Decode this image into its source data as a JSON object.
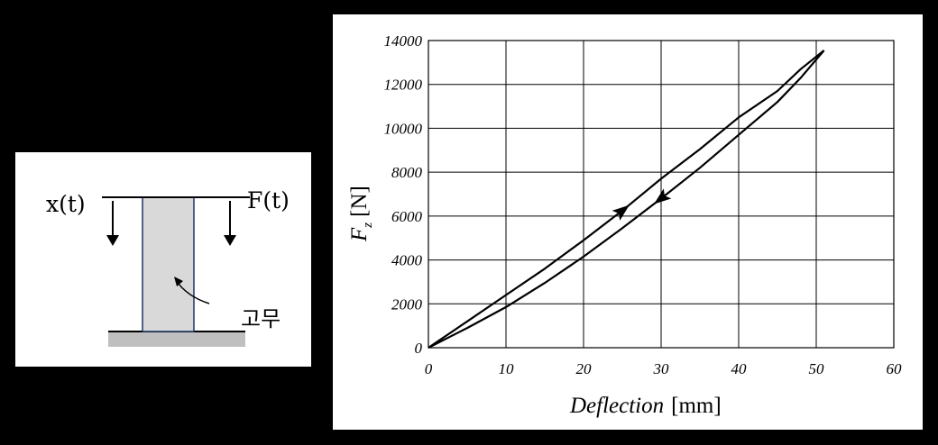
{
  "schematic": {
    "displacement_label": "x(t)",
    "force_label": "F(t)",
    "material_label": "고무",
    "colors": {
      "rubber_fill": "#d9d9d9",
      "rubber_edge": "#1f3864",
      "base_fill": "#bfbfbf"
    }
  },
  "chart_data": {
    "type": "line",
    "xlabel_italic": "Deflection",
    "xlabel_unit": "[mm]",
    "ylabel_main": "F",
    "ylabel_sub": "z",
    "ylabel_unit": "[N]",
    "xlim": [
      0,
      60
    ],
    "ylim": [
      0,
      14000
    ],
    "x_ticks": [
      "0",
      "10",
      "20",
      "30",
      "40",
      "50",
      "60"
    ],
    "y_ticks": [
      "0",
      "2000",
      "4000",
      "6000",
      "8000",
      "10000",
      "12000",
      "14000"
    ],
    "grid": true,
    "series": [
      {
        "points": [
          [
            0,
            0
          ],
          [
            5,
            1200
          ],
          [
            10,
            2400
          ],
          [
            15,
            3600
          ],
          [
            20,
            4900
          ],
          [
            25,
            6250
          ],
          [
            30,
            7700
          ],
          [
            35,
            9050
          ],
          [
            40,
            10500
          ],
          [
            45,
            11700
          ],
          [
            48,
            12700
          ],
          [
            51,
            13550
          ]
        ]
      },
      {
        "points": [
          [
            51,
            13550
          ],
          [
            48,
            12300
          ],
          [
            45,
            11200
          ],
          [
            40,
            9700
          ],
          [
            35,
            8200
          ],
          [
            30,
            6800
          ],
          [
            25,
            5450
          ],
          [
            20,
            4150
          ],
          [
            15,
            2950
          ],
          [
            10,
            1850
          ],
          [
            5,
            900
          ],
          [
            0,
            0
          ]
        ]
      }
    ],
    "arrows": [
      {
        "x": 25,
        "y": 6250,
        "direction": "up"
      },
      {
        "x": 30,
        "y": 6800,
        "direction": "down"
      }
    ]
  }
}
